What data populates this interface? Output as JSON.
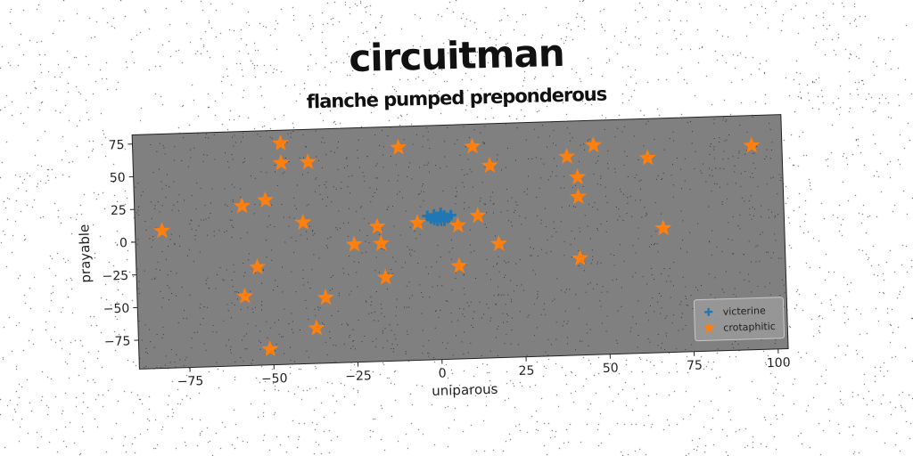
{
  "title": "circuitman",
  "subtitle": "flanche pumped preponderous",
  "colors": {
    "plot_bg": "#808080",
    "series1": "#1f77b4",
    "series2": "#ff7f0e"
  },
  "chart_data": {
    "type": "scatter",
    "title": "flanche pumped preponderous",
    "xlabel": "uniparous",
    "ylabel": "prayable",
    "xlim": [
      -90,
      103
    ],
    "ylim": [
      -97,
      82
    ],
    "xticks": [
      -75,
      -50,
      -25,
      0,
      25,
      50,
      75,
      100
    ],
    "yticks": [
      -75,
      -50,
      -25,
      0,
      25,
      50,
      75
    ],
    "grid": false,
    "legend_position": "bottom-right",
    "series": [
      {
        "name": "victerine",
        "marker": "plus",
        "color": "#1f77b4",
        "points": [
          [
            0,
            12
          ],
          [
            1,
            10
          ],
          [
            -1,
            14
          ],
          [
            2,
            13
          ],
          [
            -2,
            11
          ],
          [
            1,
            15
          ],
          [
            0,
            9
          ],
          [
            3,
            11
          ],
          [
            -1,
            10
          ],
          [
            2,
            9
          ],
          [
            1,
            12
          ],
          [
            4,
            13
          ],
          [
            -3,
            13
          ],
          [
            0,
            11
          ]
        ]
      },
      {
        "name": "crotaphitic",
        "marker": "star",
        "color": "#ff7f0e",
        "points": [
          [
            -82,
            8
          ],
          [
            -58,
            25
          ],
          [
            -51,
            29
          ],
          [
            -46,
            57
          ],
          [
            -46,
            72
          ],
          [
            -38,
            57
          ],
          [
            -40,
            11
          ],
          [
            -54,
            -22
          ],
          [
            -58,
            -44
          ],
          [
            -51,
            -85
          ],
          [
            -37,
            -70
          ],
          [
            -34,
            -47
          ],
          [
            -25,
            -7
          ],
          [
            -18,
            6
          ],
          [
            -17,
            -7
          ],
          [
            -16,
            -33
          ],
          [
            -6,
            8
          ],
          [
            -11,
            66
          ],
          [
            6,
            5
          ],
          [
            6,
            -26
          ],
          [
            11,
            65
          ],
          [
            12,
            12
          ],
          [
            16,
            50
          ],
          [
            18,
            -10
          ],
          [
            39,
            55
          ],
          [
            42,
            39
          ],
          [
            42,
            24
          ],
          [
            42,
            -23
          ],
          [
            47,
            63
          ],
          [
            63,
            52
          ],
          [
            67,
            -2
          ],
          [
            94,
            59
          ]
        ]
      }
    ]
  }
}
